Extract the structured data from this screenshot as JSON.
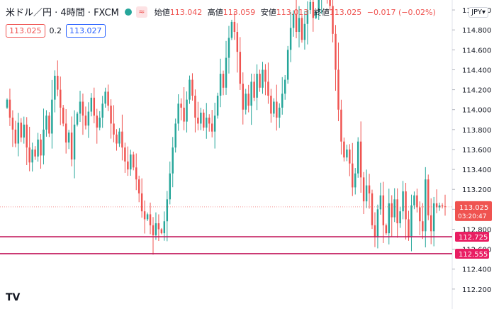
{
  "header": {
    "symbol": "米ドル／円 · 4時間 · FXCM",
    "status_glyph": "≈",
    "open_label": "始値",
    "open": "113.042",
    "high_label": "高値",
    "high": "113.059",
    "low_label": "安値",
    "low": "113.013",
    "close_label": "終値",
    "close": "113.025",
    "change": "−0.017 (−0.02%)"
  },
  "trade": {
    "sell": "113.025",
    "spread": "0.2",
    "buy": "113.027"
  },
  "currency": "JPY",
  "logo_text": "TV",
  "colors": {
    "up": "#26a69a",
    "down": "#ef5350",
    "hline": "#c2185b",
    "current": "#ef5350"
  },
  "chart_data": {
    "type": "candlestick",
    "ylim": [
      112.0,
      115.1
    ],
    "yticks": [
      112.2,
      112.4,
      112.6,
      112.8,
      113.0,
      113.2,
      113.4,
      113.6,
      113.8,
      114.0,
      114.2,
      114.4,
      114.6,
      114.8,
      115.0
    ],
    "price_levels": [
      {
        "label": "112.725",
        "value": 112.725
      },
      {
        "label": "112.555",
        "value": 112.555
      }
    ],
    "current_price": {
      "label": "113.025",
      "value": 113.025,
      "countdown": "03:20:47"
    },
    "closes": [
      114.1,
      113.92,
      113.8,
      113.66,
      113.87,
      113.72,
      113.85,
      113.62,
      113.47,
      113.6,
      113.53,
      113.7,
      113.54,
      113.8,
      113.94,
      113.76,
      114.1,
      114.34,
      114.2,
      114.02,
      113.86,
      113.67,
      113.77,
      113.5,
      113.85,
      113.96,
      114.08,
      113.94,
      113.84,
      113.98,
      114.12,
      113.94,
      113.82,
      113.92,
      114.06,
      114.18,
      114.04,
      113.86,
      113.75,
      113.66,
      113.78,
      113.62,
      113.48,
      113.4,
      113.55,
      113.42,
      113.3,
      113.16,
      112.98,
      112.9,
      112.95,
      112.84,
      112.74,
      112.86,
      112.8,
      112.76,
      112.88,
      113.1,
      113.36,
      113.62,
      113.86,
      114.06,
      114.02,
      113.88,
      114.1,
      114.3,
      114.14,
      113.92,
      113.86,
      113.97,
      113.82,
      113.92,
      113.86,
      113.78,
      113.94,
      114.14,
      114.36,
      114.22,
      114.52,
      114.72,
      114.88,
      114.78,
      114.58,
      114.26,
      114.0,
      114.16,
      114.04,
      114.28,
      114.12,
      114.36,
      114.22,
      114.4,
      114.28,
      114.14,
      113.96,
      114.08,
      113.92,
      114.02,
      114.16,
      114.3,
      114.6,
      114.82,
      114.96,
      114.78,
      114.92,
      114.7,
      114.86,
      115.0,
      115.08,
      114.92,
      114.98,
      115.12,
      115.18,
      115.22,
      115.16,
      115.04,
      114.76,
      114.4,
      114.0,
      113.68,
      113.52,
      113.6,
      113.46,
      113.22,
      113.36,
      113.68,
      113.32,
      113.08,
      113.24,
      113.16,
      112.84,
      112.72,
      113.0,
      113.14,
      112.84,
      112.76,
      113.06,
      112.92,
      113.1,
      112.86,
      112.98,
      113.18,
      112.9,
      112.72,
      113.04,
      113.14,
      113.02,
      112.88,
      112.78,
      113.3,
      112.94,
      112.78,
      113.06,
      113.02,
      113.04,
      113.03,
      113.025
    ]
  }
}
